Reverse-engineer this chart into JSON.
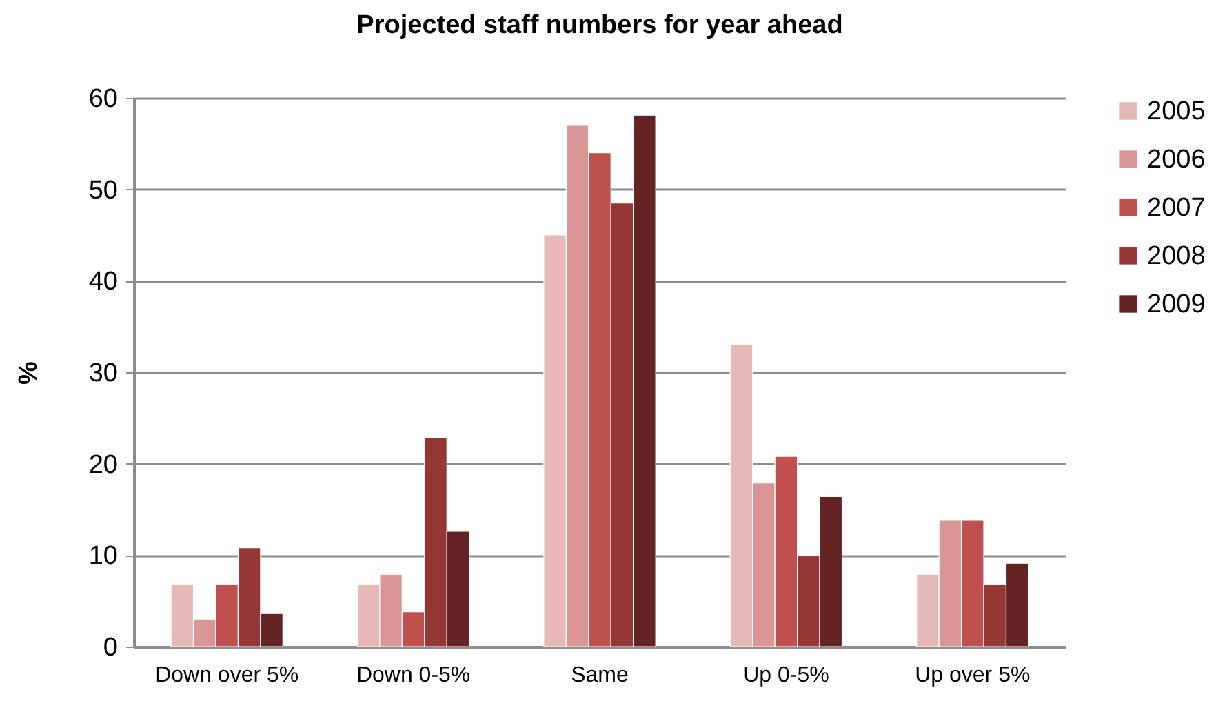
{
  "chart_data": {
    "type": "bar",
    "title": "Projected staff numbers for year ahead",
    "ylabel": "%",
    "categories": [
      "Down over 5%",
      "Down 0-5%",
      "Same",
      "Up 0-5%",
      "Up over 5%"
    ],
    "series": [
      {
        "name": "2005",
        "color": "#e6b9b8",
        "values": [
          6.8,
          6.8,
          45,
          33,
          7.9
        ]
      },
      {
        "name": "2006",
        "color": "#d99694",
        "values": [
          3,
          7.9,
          57,
          17.9,
          13.8
        ]
      },
      {
        "name": "2007",
        "color": "#c0504d",
        "values": [
          6.8,
          3.8,
          54,
          20.8,
          13.8
        ]
      },
      {
        "name": "2008",
        "color": "#953735",
        "values": [
          10.8,
          22.8,
          48.5,
          10,
          6.8
        ]
      },
      {
        "name": "2009",
        "color": "#632423",
        "values": [
          3.6,
          12.6,
          58.1,
          16.4,
          9.1
        ]
      }
    ],
    "ylim": [
      0,
      60
    ],
    "yticks": [
      0,
      10,
      20,
      30,
      40,
      50,
      60
    ],
    "grid": "y",
    "legend": "right"
  }
}
